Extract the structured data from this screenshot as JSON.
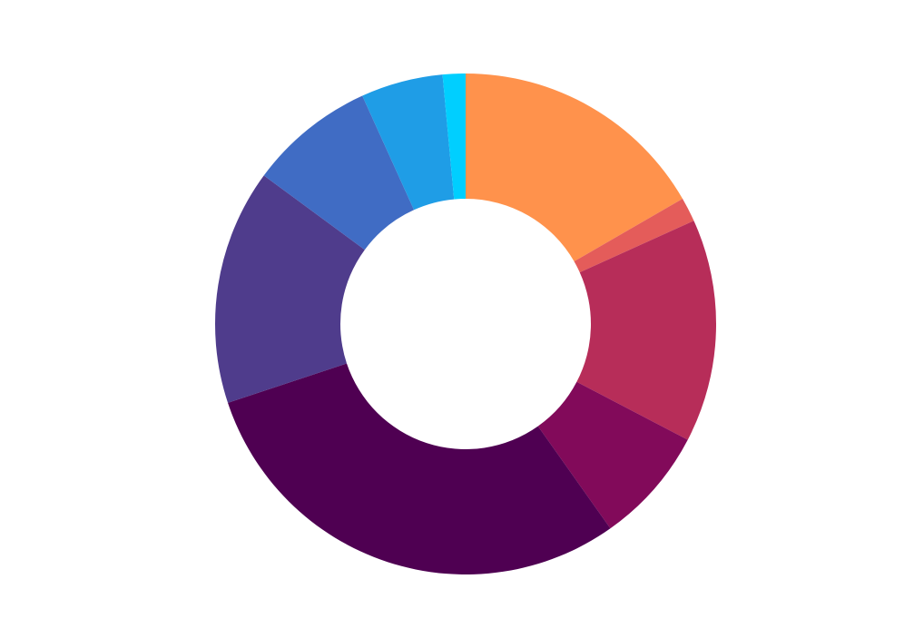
{
  "chart_data": {
    "type": "pie",
    "variant": "donut",
    "legend": "none",
    "slices": [
      {
        "value": 17.0,
        "color": "#ff924c"
      },
      {
        "value": 1.6,
        "color": "#e45c5a"
      },
      {
        "value": 14.7,
        "color": "#b72d59"
      },
      {
        "value": 7.7,
        "color": "#820a5a"
      },
      {
        "value": 30.3,
        "color": "#4f0052"
      },
      {
        "value": 15.5,
        "color": "#4f3c8c"
      },
      {
        "value": 8.3,
        "color": "#406cc4"
      },
      {
        "value": 5.4,
        "color": "#1f9de6"
      },
      {
        "value": 1.5,
        "color": "#00cfff"
      }
    ]
  }
}
